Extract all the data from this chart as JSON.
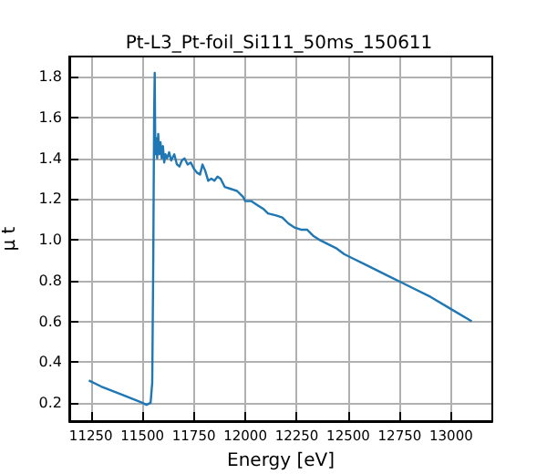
{
  "chart_data": {
    "type": "line",
    "title": "Pt-L3_Pt-foil_Si111_50ms_150611",
    "xlabel": "Energy [eV]",
    "ylabel": "μ t",
    "x": [
      11240,
      11300,
      11400,
      11500,
      11520,
      11540,
      11548,
      11553,
      11557,
      11560,
      11563,
      11567,
      11572,
      11577,
      11582,
      11588,
      11594,
      11600,
      11606,
      11612,
      11620,
      11630,
      11640,
      11655,
      11668,
      11680,
      11692,
      11705,
      11720,
      11735,
      11750,
      11765,
      11780,
      11792,
      11805,
      11820,
      11835,
      11850,
      11865,
      11880,
      11900,
      11930,
      11960,
      11990,
      12000,
      12030,
      12060,
      12090,
      12110,
      12150,
      12180,
      12210,
      12240,
      12270,
      12300,
      12330,
      12360,
      12400,
      12440,
      12480,
      12520,
      12580,
      12640,
      12700,
      12760,
      12820,
      12900,
      13000,
      13100
    ],
    "series": [
      {
        "color": "#1f77b4",
        "values": [
          0.31,
          0.28,
          0.24,
          0.2,
          0.19,
          0.2,
          0.3,
          0.9,
          1.6,
          1.82,
          1.42,
          1.5,
          1.4,
          1.52,
          1.42,
          1.48,
          1.4,
          1.46,
          1.38,
          1.42,
          1.4,
          1.43,
          1.39,
          1.42,
          1.37,
          1.36,
          1.39,
          1.4,
          1.37,
          1.38,
          1.35,
          1.33,
          1.32,
          1.37,
          1.34,
          1.29,
          1.3,
          1.29,
          1.31,
          1.3,
          1.26,
          1.25,
          1.24,
          1.21,
          1.19,
          1.19,
          1.17,
          1.15,
          1.13,
          1.12,
          1.11,
          1.08,
          1.06,
          1.05,
          1.05,
          1.02,
          1.0,
          0.98,
          0.96,
          0.93,
          0.91,
          0.88,
          0.85,
          0.82,
          0.79,
          0.76,
          0.72,
          0.66,
          0.6
        ]
      }
    ],
    "xlim": [
      11145,
      13200
    ],
    "xticks": [
      11250,
      11500,
      11750,
      12000,
      12250,
      12500,
      12750,
      13000
    ],
    "ylim": [
      0.11,
      1.9
    ],
    "yticks": [
      0.2,
      0.4,
      0.6,
      0.8,
      {
        "value": 1,
        "label": "1.0"
      },
      1.2,
      1.4,
      1.6,
      1.8
    ],
    "grid": true,
    "marker": "none",
    "line_style": "solid"
  }
}
